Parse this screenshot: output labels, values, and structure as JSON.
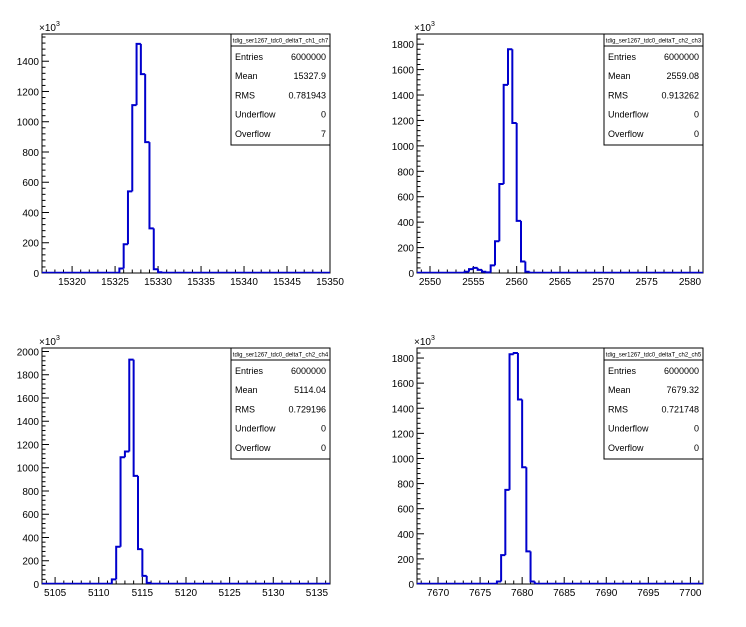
{
  "chart_data": [
    {
      "type": "bar",
      "title": "",
      "stats_title": "tdig_ser1267_tdc0_deltaT_ch1_ch7",
      "stats": [
        {
          "label": "Entries",
          "value": "6000000"
        },
        {
          "label": "Mean",
          "value": "15327.9"
        },
        {
          "label": "RMS",
          "value": "0.781943"
        },
        {
          "label": "Underflow",
          "value": "0"
        },
        {
          "label": "Overflow",
          "value": "7"
        }
      ],
      "xlim": [
        15316.5,
        15350.0
      ],
      "ylim": [
        0,
        1580
      ],
      "xticks": [
        15320,
        15325,
        15330,
        15335,
        15340,
        15345,
        15350
      ],
      "yticks": [
        0,
        200,
        400,
        600,
        800,
        1000,
        1200,
        1400
      ],
      "y_exponent_label": "×10",
      "y_exponent": "3",
      "bin_width": 0.5,
      "bins": [
        {
          "x": 15325.5,
          "y": 30
        },
        {
          "x": 15326.0,
          "y": 190
        },
        {
          "x": 15326.5,
          "y": 540
        },
        {
          "x": 15327.0,
          "y": 1110
        },
        {
          "x": 15327.5,
          "y": 1515
        },
        {
          "x": 15328.0,
          "y": 1315
        },
        {
          "x": 15328.5,
          "y": 865
        },
        {
          "x": 15329.0,
          "y": 295
        },
        {
          "x": 15329.5,
          "y": 25
        },
        {
          "x": 15330.0,
          "y": 5
        }
      ]
    },
    {
      "type": "bar",
      "title": "",
      "stats_title": "tdig_ser1267_tdc0_deltaT_ch2_ch3",
      "stats": [
        {
          "label": "Entries",
          "value": "6000000"
        },
        {
          "label": "Mean",
          "value": "2559.08"
        },
        {
          "label": "RMS",
          "value": "0.913262"
        },
        {
          "label": "Underflow",
          "value": "0"
        },
        {
          "label": "Overflow",
          "value": "0"
        }
      ],
      "xlim": [
        2548.5,
        2581.5
      ],
      "ylim": [
        0,
        1880
      ],
      "xticks": [
        2550,
        2555,
        2560,
        2565,
        2570,
        2575,
        2580
      ],
      "yticks": [
        0,
        200,
        400,
        600,
        800,
        1000,
        1200,
        1400,
        1600,
        1800
      ],
      "y_exponent_label": "×10",
      "y_exponent": "3",
      "bin_width": 0.5,
      "bins": [
        {
          "x": 2554.0,
          "y": 10
        },
        {
          "x": 2554.5,
          "y": 30
        },
        {
          "x": 2555.0,
          "y": 40
        },
        {
          "x": 2555.5,
          "y": 25
        },
        {
          "x": 2556.0,
          "y": 10
        },
        {
          "x": 2556.5,
          "y": 5
        },
        {
          "x": 2557.0,
          "y": 60
        },
        {
          "x": 2557.5,
          "y": 250
        },
        {
          "x": 2558.0,
          "y": 700
        },
        {
          "x": 2558.5,
          "y": 1480
        },
        {
          "x": 2559.0,
          "y": 1760
        },
        {
          "x": 2559.5,
          "y": 1180
        },
        {
          "x": 2560.0,
          "y": 410
        },
        {
          "x": 2560.5,
          "y": 90
        },
        {
          "x": 2561.0,
          "y": 10
        }
      ]
    },
    {
      "type": "bar",
      "title": "",
      "stats_title": "tdig_ser1267_tdc0_deltaT_ch2_ch4",
      "stats": [
        {
          "label": "Entries",
          "value": "6000000"
        },
        {
          "label": "Mean",
          "value": "5114.04"
        },
        {
          "label": "RMS",
          "value": "0.729196"
        },
        {
          "label": "Underflow",
          "value": "0"
        },
        {
          "label": "Overflow",
          "value": "0"
        }
      ],
      "xlim": [
        5103.5,
        5136.5
      ],
      "ylim": [
        0,
        2030
      ],
      "xticks": [
        5105,
        5110,
        5115,
        5120,
        5125,
        5130,
        5135
      ],
      "yticks": [
        0,
        200,
        400,
        600,
        800,
        1000,
        1200,
        1400,
        1600,
        1800,
        2000
      ],
      "y_exponent_label": "×10",
      "y_exponent": "3",
      "bin_width": 0.5,
      "bins": [
        {
          "x": 5111.5,
          "y": 40
        },
        {
          "x": 5112.0,
          "y": 320
        },
        {
          "x": 5112.5,
          "y": 1090
        },
        {
          "x": 5113.0,
          "y": 1140
        },
        {
          "x": 5113.5,
          "y": 1930
        },
        {
          "x": 5114.0,
          "y": 930
        },
        {
          "x": 5114.5,
          "y": 300
        },
        {
          "x": 5115.0,
          "y": 70
        },
        {
          "x": 5115.5,
          "y": 10
        }
      ]
    },
    {
      "type": "bar",
      "title": "",
      "stats_title": "tdig_ser1267_tdc0_deltaT_ch2_ch5",
      "stats": [
        {
          "label": "Entries",
          "value": "6000000"
        },
        {
          "label": "Mean",
          "value": "7679.32"
        },
        {
          "label": "RMS",
          "value": "0.721748"
        },
        {
          "label": "Underflow",
          "value": "0"
        },
        {
          "label": "Overflow",
          "value": "0"
        }
      ],
      "xlim": [
        7667.5,
        7701.5
      ],
      "ylim": [
        0,
        1880
      ],
      "xticks": [
        7670,
        7675,
        7680,
        7685,
        7690,
        7695,
        7700
      ],
      "yticks": [
        0,
        200,
        400,
        600,
        800,
        1000,
        1200,
        1400,
        1600,
        1800
      ],
      "y_exponent_label": "×10",
      "y_exponent": "3",
      "bin_width": 0.5,
      "bins": [
        {
          "x": 7677.0,
          "y": 20
        },
        {
          "x": 7677.5,
          "y": 230
        },
        {
          "x": 7678.0,
          "y": 750
        },
        {
          "x": 7678.5,
          "y": 1830
        },
        {
          "x": 7679.0,
          "y": 1840
        },
        {
          "x": 7679.5,
          "y": 1470
        },
        {
          "x": 7680.0,
          "y": 930
        },
        {
          "x": 7680.5,
          "y": 260
        },
        {
          "x": 7681.0,
          "y": 20
        }
      ]
    }
  ]
}
